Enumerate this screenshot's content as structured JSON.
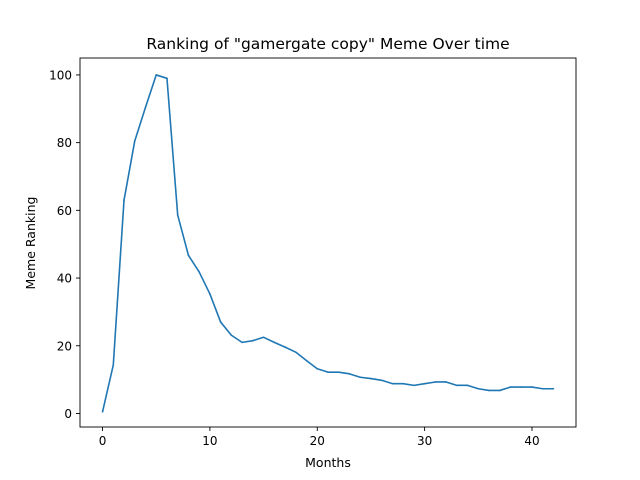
{
  "chart_data": {
    "type": "line",
    "title": "Ranking of \"gamergate copy\" Meme Over time",
    "xlabel": "Months",
    "ylabel": "Meme Ranking",
    "xlim": [
      -2.1,
      44.1
    ],
    "ylim": [
      -4.0,
      105.0
    ],
    "xticks": [
      0,
      10,
      20,
      30,
      40
    ],
    "yticks": [
      0,
      20,
      40,
      60,
      80,
      100
    ],
    "grid": false,
    "line_color": "#1f77b4",
    "series": [
      {
        "x": [
          0,
          1,
          2,
          3,
          4,
          5,
          6,
          7,
          8,
          9,
          10,
          11,
          12,
          13,
          14,
          15,
          16,
          17,
          18,
          19,
          20,
          21,
          22,
          23,
          24,
          25,
          26,
          27,
          28,
          29,
          30,
          31,
          32,
          33,
          34,
          35,
          36,
          37,
          38,
          39,
          40,
          41,
          42
        ],
        "values": [
          0.5,
          14.3,
          63.0,
          80.5,
          90.4,
          100.0,
          99.0,
          58.6,
          46.7,
          41.8,
          35.3,
          27.0,
          23.1,
          21.0,
          21.5,
          22.5,
          21.0,
          19.6,
          18.1,
          15.6,
          13.2,
          12.2,
          12.2,
          11.7,
          10.7,
          10.3,
          9.8,
          8.8,
          8.8,
          8.3,
          8.8,
          9.3,
          9.3,
          8.3,
          8.3,
          7.3,
          6.8,
          6.8,
          7.8,
          7.8,
          7.8,
          7.3,
          7.3
        ]
      }
    ]
  }
}
